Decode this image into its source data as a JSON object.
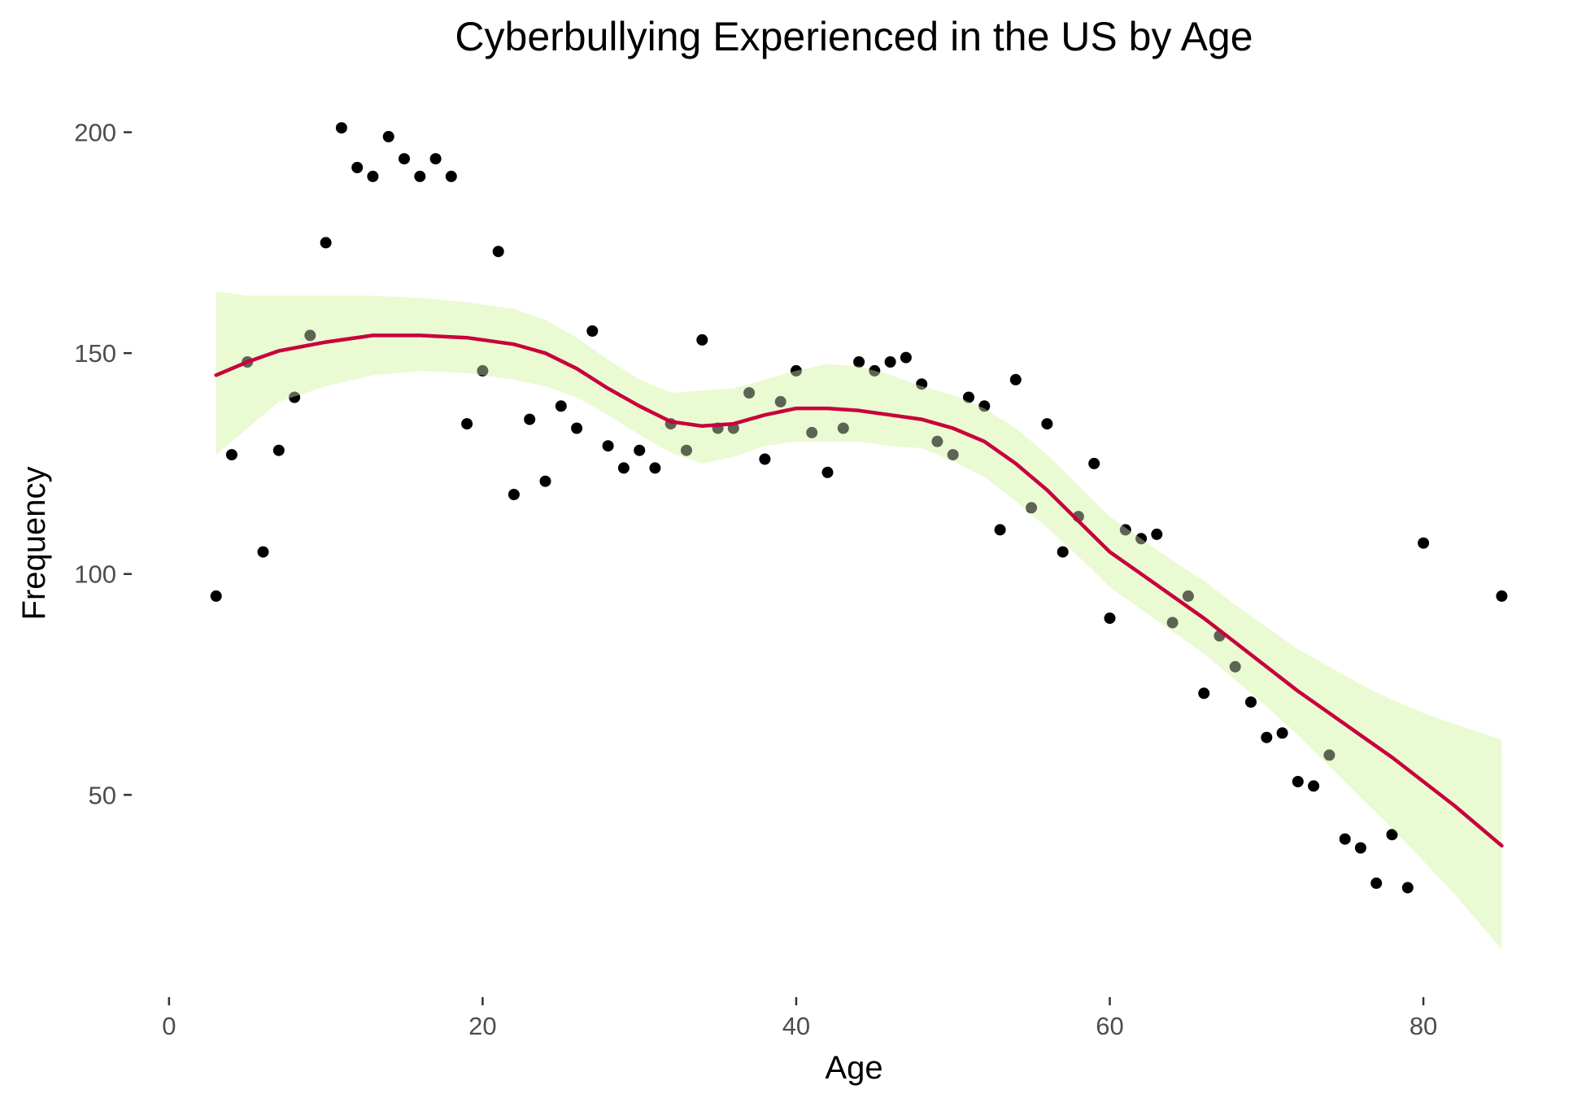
{
  "chart_data": {
    "type": "scatter",
    "title": "Cyberbullying Experienced in the US by Age",
    "xlabel": "Age",
    "ylabel": "Frequency",
    "xlim": [
      -3,
      87
    ],
    "ylim": [
      9,
      206
    ],
    "x_ticks": [
      0,
      20,
      40,
      60,
      80
    ],
    "y_ticks": [
      50,
      100,
      150,
      200
    ],
    "grid": false,
    "colors": {
      "points": "#000000",
      "smooth_line": "#c8003c",
      "confidence_band": "#eafad2"
    },
    "points": [
      [
        3,
        95
      ],
      [
        4,
        127
      ],
      [
        5,
        148
      ],
      [
        6,
        105
      ],
      [
        7,
        128
      ],
      [
        8,
        140
      ],
      [
        9,
        154
      ],
      [
        10,
        175
      ],
      [
        11,
        201
      ],
      [
        12,
        192
      ],
      [
        13,
        190
      ],
      [
        14,
        199
      ],
      [
        15,
        194
      ],
      [
        16,
        190
      ],
      [
        17,
        194
      ],
      [
        18,
        190
      ],
      [
        19,
        134
      ],
      [
        20,
        146
      ],
      [
        21,
        173
      ],
      [
        22,
        118
      ],
      [
        23,
        135
      ],
      [
        24,
        121
      ],
      [
        25,
        138
      ],
      [
        26,
        133
      ],
      [
        27,
        155
      ],
      [
        28,
        129
      ],
      [
        29,
        124
      ],
      [
        30,
        128
      ],
      [
        31,
        124
      ],
      [
        32,
        134
      ],
      [
        33,
        128
      ],
      [
        34,
        153
      ],
      [
        35,
        133
      ],
      [
        36,
        133
      ],
      [
        37,
        141
      ],
      [
        38,
        126
      ],
      [
        39,
        139
      ],
      [
        40,
        146
      ],
      [
        41,
        132
      ],
      [
        42,
        123
      ],
      [
        43,
        133
      ],
      [
        44,
        148
      ],
      [
        45,
        146
      ],
      [
        46,
        148
      ],
      [
        47,
        149
      ],
      [
        48,
        143
      ],
      [
        49,
        130
      ],
      [
        50,
        127
      ],
      [
        51,
        140
      ],
      [
        52,
        138
      ],
      [
        53,
        110
      ],
      [
        54,
        144
      ],
      [
        55,
        115
      ],
      [
        56,
        134
      ],
      [
        57,
        105
      ],
      [
        58,
        113
      ],
      [
        59,
        125
      ],
      [
        60,
        90
      ],
      [
        61,
        110
      ],
      [
        62,
        108
      ],
      [
        63,
        109
      ],
      [
        64,
        89
      ],
      [
        65,
        95
      ],
      [
        66,
        73
      ],
      [
        67,
        86
      ],
      [
        68,
        79
      ],
      [
        69,
        71
      ],
      [
        70,
        63
      ],
      [
        71,
        64
      ],
      [
        72,
        53
      ],
      [
        73,
        52
      ],
      [
        74,
        59
      ],
      [
        75,
        40
      ],
      [
        76,
        38
      ],
      [
        77,
        30
      ],
      [
        78,
        41
      ],
      [
        79,
        29
      ],
      [
        80,
        107
      ],
      [
        85,
        95
      ]
    ],
    "smooth": [
      [
        3,
        145,
        127,
        164
      ],
      [
        5,
        148,
        133,
        163
      ],
      [
        7,
        150.5,
        139,
        163
      ],
      [
        10,
        152.5,
        142.5,
        163
      ],
      [
        13,
        154,
        145,
        163
      ],
      [
        16,
        154,
        146,
        162.5
      ],
      [
        19,
        153.5,
        145.5,
        161.5
      ],
      [
        22,
        152,
        144,
        160
      ],
      [
        24,
        150,
        142.5,
        157.5
      ],
      [
        26,
        146.5,
        140,
        153.5
      ],
      [
        28,
        142,
        136,
        148.5
      ],
      [
        30,
        138,
        131.5,
        144
      ],
      [
        32,
        134.5,
        127.5,
        141
      ],
      [
        34,
        133.5,
        125,
        141.5
      ],
      [
        36,
        134,
        126.5,
        142
      ],
      [
        38,
        136,
        129,
        144
      ],
      [
        40,
        137.5,
        130,
        146
      ],
      [
        42,
        137.5,
        130,
        147.5
      ],
      [
        44,
        137,
        130,
        147
      ],
      [
        46,
        136,
        129,
        145
      ],
      [
        48,
        135,
        128.5,
        142.5
      ],
      [
        50,
        133,
        125.5,
        140.5
      ],
      [
        52,
        130,
        122,
        137.5
      ],
      [
        54,
        125,
        116.5,
        133
      ],
      [
        56,
        119,
        110.5,
        127
      ],
      [
        58,
        112,
        104,
        120
      ],
      [
        60,
        105,
        97,
        113
      ],
      [
        62,
        100,
        92,
        108
      ],
      [
        64,
        95,
        87,
        103
      ],
      [
        66,
        90,
        82,
        98.5
      ],
      [
        68,
        84.5,
        76,
        93
      ],
      [
        70,
        79,
        70,
        88
      ],
      [
        72,
        73.5,
        63.5,
        83
      ],
      [
        74,
        68.5,
        56.5,
        79
      ],
      [
        76,
        63.5,
        49.5,
        75
      ],
      [
        78,
        58.5,
        42.5,
        71.5
      ],
      [
        80,
        53,
        35,
        68.5
      ],
      [
        82,
        47.5,
        27.5,
        66
      ],
      [
        85,
        38.5,
        15,
        62.5
      ]
    ]
  }
}
